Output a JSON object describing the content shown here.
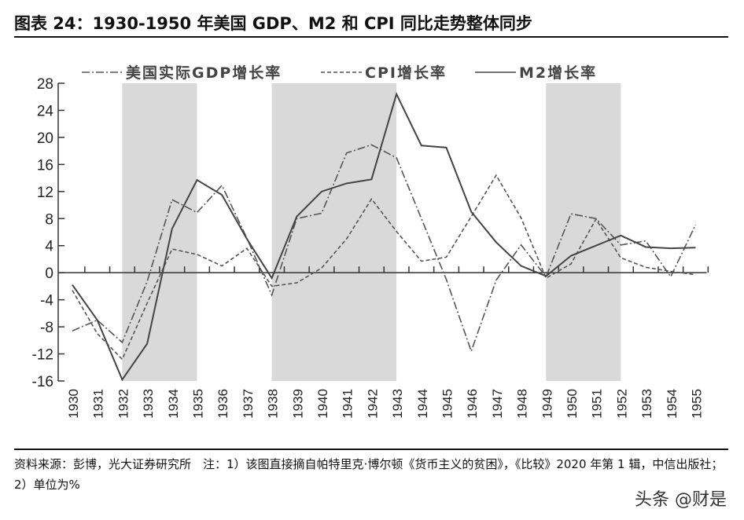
{
  "title": "图表 24：1930-1950 年美国 GDP、M2 和 CPI 同比走势整体同步",
  "footer": {
    "source": "资料来源：彭博，光大证券研究所　注：1）该图直接摘自帕特里克·博尔顿《货币主义的贫困》，《比较》2020 年第 1 辑，中信出版社；2）单位为%"
  },
  "watermark": "头条 @财是",
  "chart_data": {
    "type": "line",
    "title": "",
    "xlabel": "",
    "ylabel": "",
    "x": [
      1930,
      1931,
      1932,
      1933,
      1934,
      1935,
      1936,
      1937,
      1938,
      1939,
      1940,
      1941,
      1942,
      1943,
      1944,
      1945,
      1946,
      1947,
      1948,
      1949,
      1950,
      1951,
      1952,
      1953,
      1954,
      1955
    ],
    "x_tick_labels": [
      "1930",
      "1931",
      "1932",
      "1933",
      "1934",
      "1935",
      "1936",
      "1937",
      "1938",
      "1939",
      "1940",
      "1941",
      "1942",
      "1943",
      "1944",
      "1945",
      "1946",
      "1947",
      "1948",
      "1949",
      "1950",
      "1951",
      "1952",
      "1953",
      "1954",
      "1955"
    ],
    "ylim": [
      -16,
      28
    ],
    "y_ticks": [
      28,
      24,
      20,
      16,
      12,
      8,
      4,
      0,
      -4,
      -8,
      -12,
      -16
    ],
    "y_tick_labels": [
      "28",
      "24",
      "20",
      "16",
      "12",
      "8",
      "4",
      "0",
      "-4",
      "-8",
      "-12",
      "-16"
    ],
    "shaded_periods": [
      [
        1932,
        1935
      ],
      [
        1938,
        1943
      ],
      [
        1949,
        1952
      ]
    ],
    "shade_color": "#d9d9da",
    "grid": false,
    "legend_position": "top",
    "series": [
      {
        "name": "美国实际GDP增长率",
        "style": "dash-dot",
        "color": "#555555",
        "values": [
          -8.6,
          -7,
          -10.3,
          -1.3,
          10.8,
          8.9,
          12.9,
          5.1,
          -3.3,
          8,
          8.8,
          17.7,
          18.9,
          17,
          8,
          -1,
          -11.6,
          -1.1,
          4.1,
          -0.6,
          8.7,
          8,
          4.1,
          4.7,
          -0.6,
          7.1
        ]
      },
      {
        "name": "CPI增长率",
        "style": "dashed",
        "color": "#555555",
        "values": [
          -2.6,
          -9,
          -12.8,
          -4.5,
          3.5,
          2.7,
          1,
          3.6,
          -2,
          -1.5,
          0.7,
          5,
          10.9,
          6.1,
          1.7,
          2.3,
          8.3,
          14.4,
          8.1,
          -0.8,
          1.3,
          7.9,
          2.2,
          0.8,
          0.2,
          -0.3
        ]
      },
      {
        "name": "M2增长率",
        "style": "solid",
        "color": "#444444",
        "values": [
          -1.8,
          -7,
          -15.8,
          -10.5,
          6.5,
          13.7,
          11.5,
          5,
          -0.8,
          8.3,
          12,
          13.2,
          13.8,
          26.4,
          18.8,
          18.5,
          9,
          4.5,
          1,
          -0.5,
          2.5,
          4,
          5.5,
          3.8,
          3.6,
          3.7
        ]
      }
    ]
  }
}
